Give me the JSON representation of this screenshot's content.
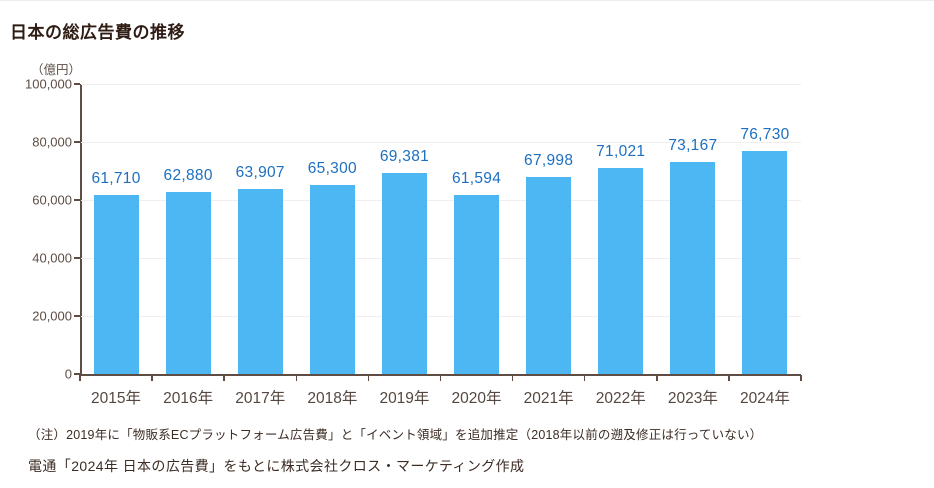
{
  "page": {
    "title": "日本の総広告費の推移",
    "notes": {
      "note1": "（注）2019年に「物販系ECプラットフォーム広告費」と「イベント領域」を追加推定（2018年以前の遡及修正は行っていない）",
      "note2": "電通「2024年 日本の広告費」をもとに株式会社クロス・マーケティング作成"
    }
  },
  "chart_data": {
    "type": "bar",
    "title": "日本の総広告費の推移",
    "unit_label": "（億円）",
    "categories": [
      "2015年",
      "2016年",
      "2017年",
      "2018年",
      "2019年",
      "2020年",
      "2021年",
      "2022年",
      "2023年",
      "2024年"
    ],
    "values": [
      61710,
      62880,
      63907,
      65300,
      69381,
      61594,
      67998,
      71021,
      73167,
      76730
    ],
    "value_labels": [
      "61,710",
      "62,880",
      "63,907",
      "65,300",
      "69,381",
      "61,594",
      "67,998",
      "71,021",
      "73,167",
      "76,730"
    ],
    "xlabel": "",
    "ylabel": "（億円）",
    "ylim": [
      0,
      100000
    ],
    "ytick_interval": 20000,
    "yticks": [
      {
        "value": 0,
        "label": "0"
      },
      {
        "value": 20000,
        "label": "20,000"
      },
      {
        "value": 40000,
        "label": "40,000"
      },
      {
        "value": 60000,
        "label": "60,000"
      },
      {
        "value": 80000,
        "label": "80,000"
      },
      {
        "value": 100000,
        "label": "100,000"
      }
    ],
    "grid": true,
    "legend": "none",
    "colors": {
      "bar": "#4cb7f2",
      "value_label": "#1d6fc0",
      "axis_text": "#5d4d45",
      "axis_line": "#5d4d45",
      "gridline": "#f1efed",
      "title_text": "#2f1d15"
    }
  }
}
